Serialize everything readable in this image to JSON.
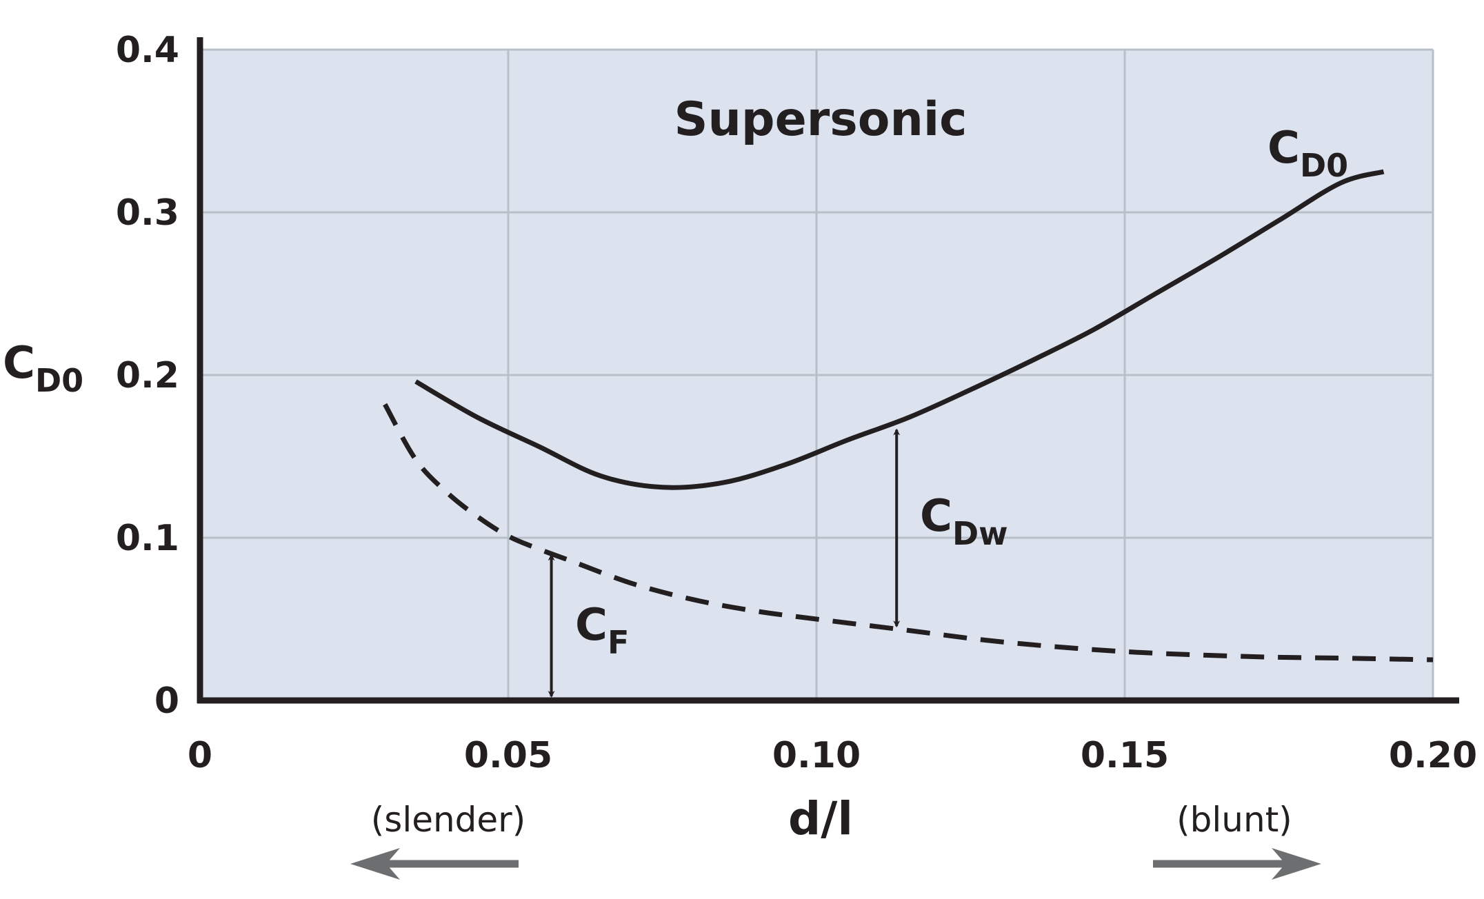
{
  "chart_data": {
    "type": "line",
    "title": "Supersonic",
    "xlabel": "d/l",
    "ylabel": {
      "base": "C",
      "sub": "D0"
    },
    "xlim": [
      0,
      0.2
    ],
    "ylim": [
      0,
      0.4
    ],
    "x_ticks": [
      0,
      0.05,
      0.1,
      0.15,
      0.2
    ],
    "x_tick_labels": [
      "0",
      "0.05",
      "0.10",
      "0.15",
      "0.20"
    ],
    "y_ticks": [
      0,
      0.1,
      0.2,
      0.3,
      0.4
    ],
    "y_tick_labels": [
      "0",
      "0.1",
      "0.2",
      "0.3",
      "0.4"
    ],
    "grid": true,
    "background_color": "#dce3ef",
    "grid_color": "#b9bfc6",
    "line_color": "#231f20",
    "arrow_color": "#6d6e70",
    "series": [
      {
        "name": {
          "base": "C",
          "sub": "D0"
        },
        "style": "solid",
        "points": [
          [
            0.035,
            0.196
          ],
          [
            0.045,
            0.174
          ],
          [
            0.055,
            0.156
          ],
          [
            0.065,
            0.138
          ],
          [
            0.075,
            0.131
          ],
          [
            0.085,
            0.134
          ],
          [
            0.095,
            0.145
          ],
          [
            0.105,
            0.16
          ],
          [
            0.115,
            0.174
          ],
          [
            0.125,
            0.191
          ],
          [
            0.135,
            0.209
          ],
          [
            0.145,
            0.228
          ],
          [
            0.155,
            0.25
          ],
          [
            0.165,
            0.272
          ],
          [
            0.175,
            0.295
          ],
          [
            0.185,
            0.318
          ],
          [
            0.192,
            0.325
          ]
        ]
      },
      {
        "name": "",
        "style": "dashed",
        "points": [
          [
            0.03,
            0.182
          ],
          [
            0.035,
            0.148
          ],
          [
            0.04,
            0.128
          ],
          [
            0.045,
            0.113
          ],
          [
            0.05,
            0.101
          ],
          [
            0.055,
            0.093
          ],
          [
            0.06,
            0.086
          ],
          [
            0.07,
            0.072
          ],
          [
            0.08,
            0.062
          ],
          [
            0.09,
            0.055
          ],
          [
            0.1,
            0.05
          ],
          [
            0.115,
            0.043
          ],
          [
            0.13,
            0.036
          ],
          [
            0.15,
            0.03
          ],
          [
            0.17,
            0.027
          ],
          [
            0.185,
            0.026
          ],
          [
            0.2,
            0.025
          ]
        ]
      }
    ],
    "annotations": {
      "cdw": {
        "base": "C",
        "sub": "Dw",
        "x": 0.113,
        "from": 0.044,
        "to": 0.168
      },
      "cf": {
        "base": "C",
        "sub": "F",
        "x": 0.057,
        "from": 0,
        "to": 0.091
      },
      "slender": "(slender)",
      "blunt": "(blunt)"
    }
  }
}
